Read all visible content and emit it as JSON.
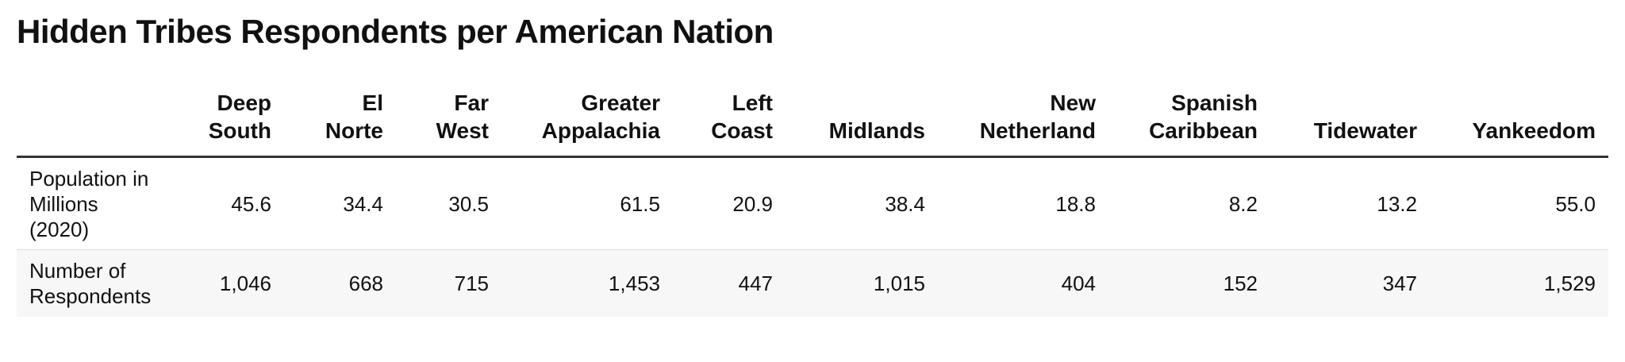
{
  "title": "Hidden Tribes Respondents per American Nation",
  "table": {
    "columns": [
      "Deep South",
      "El Norte",
      "Far West",
      "Greater Appalachia",
      "Left Coast",
      "Midlands",
      "New Netherland",
      "Spanish Caribbean",
      "Tidewater",
      "Yankeedom"
    ],
    "rows": [
      {
        "label": "Population in Millions (2020)",
        "cells": [
          "45.6",
          "34.4",
          "30.5",
          "61.5",
          "20.9",
          "38.4",
          "18.8",
          "8.2",
          "13.2",
          "55.0"
        ]
      },
      {
        "label": "Number of Respondents",
        "cells": [
          "1,046",
          "668",
          "715",
          "1,453",
          "447",
          "1,015",
          "404",
          "152",
          "347",
          "1,529"
        ]
      }
    ]
  }
}
